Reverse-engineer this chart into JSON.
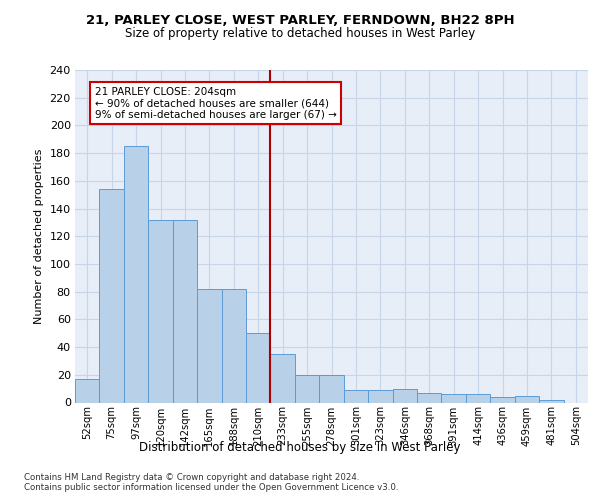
{
  "title1": "21, PARLEY CLOSE, WEST PARLEY, FERNDOWN, BH22 8PH",
  "title2": "Size of property relative to detached houses in West Parley",
  "xlabel": "Distribution of detached houses by size in West Parley",
  "ylabel": "Number of detached properties",
  "categories": [
    "52sqm",
    "75sqm",
    "97sqm",
    "120sqm",
    "142sqm",
    "165sqm",
    "188sqm",
    "210sqm",
    "233sqm",
    "255sqm",
    "278sqm",
    "301sqm",
    "323sqm",
    "346sqm",
    "368sqm",
    "391sqm",
    "414sqm",
    "436sqm",
    "459sqm",
    "481sqm",
    "504sqm"
  ],
  "values": [
    17,
    154,
    185,
    132,
    132,
    82,
    82,
    50,
    35,
    20,
    20,
    9,
    9,
    10,
    7,
    6,
    6,
    4,
    5,
    2,
    0
  ],
  "bar_color": "#b8d0e8",
  "bar_edge_color": "#5b9bd5",
  "vline_color": "#aa0000",
  "annotation_text": "21 PARLEY CLOSE: 204sqm\n← 90% of detached houses are smaller (644)\n9% of semi-detached houses are larger (67) →",
  "annotation_box_color": "#ffffff",
  "annotation_box_edge": "#cc0000",
  "ylim": [
    0,
    240
  ],
  "yticks": [
    0,
    20,
    40,
    60,
    80,
    100,
    120,
    140,
    160,
    180,
    200,
    220,
    240
  ],
  "grid_color": "#c8d4e8",
  "footer": "Contains HM Land Registry data © Crown copyright and database right 2024.\nContains public sector information licensed under the Open Government Licence v3.0.",
  "bg_color": "#e8eef8"
}
